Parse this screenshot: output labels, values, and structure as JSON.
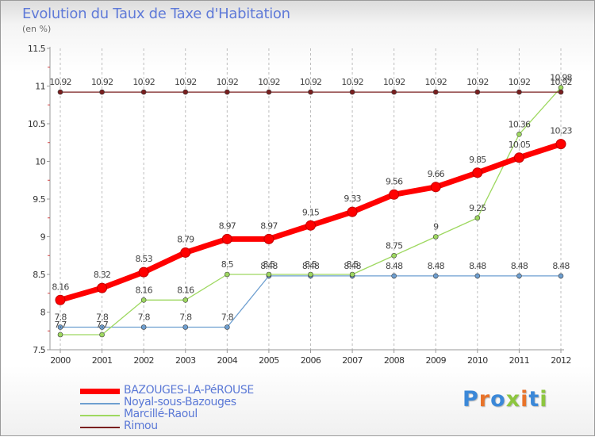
{
  "title": "Evolution du Taux de Taxe d'Habitation",
  "subtitle": "(en %)",
  "logo": {
    "text": "Proxiti",
    "letter_colors": [
      "#3b88d8",
      "#e8732a",
      "#3b88d8",
      "#8dc63f",
      "#e8732a",
      "#3b88d8",
      "#8dc63f"
    ]
  },
  "chart_data": {
    "type": "line",
    "title": "Evolution du Taux de Taxe d'Habitation",
    "subtitle": "(en %)",
    "xlabel": "",
    "ylabel": "",
    "x": [
      "2000",
      "2001",
      "2002",
      "2003",
      "2004",
      "2005",
      "2006",
      "2007",
      "2008",
      "2009",
      "2010",
      "2011",
      "2012"
    ],
    "ylim": [
      7.5,
      11.5
    ],
    "yticks": [
      "7.5",
      "8",
      "8.5",
      "9",
      "9.5",
      "10",
      "10.5",
      "11",
      "11.5"
    ],
    "grid": "vertical-dashed",
    "legend_position": "bottom-left",
    "series": [
      {
        "name": "BAZOUGES-LA-PéROUSE",
        "color": "#ff0000",
        "width": 7,
        "values": [
          8.16,
          8.32,
          8.53,
          8.79,
          8.97,
          8.97,
          9.15,
          9.33,
          9.56,
          9.66,
          9.85,
          10.05,
          10.23
        ],
        "labels": [
          "8.16",
          "8.32",
          "8.53",
          "8.79",
          "8.97",
          "8.97",
          "9.15",
          "9.33",
          "9.56",
          "9.66",
          "9.85",
          "10.05",
          "10.23"
        ]
      },
      {
        "name": "Noyal-sous-Bazouges",
        "color": "#6e9fd0",
        "width": 1.3,
        "values": [
          7.8,
          7.8,
          7.8,
          7.8,
          7.8,
          8.48,
          8.48,
          8.48,
          8.48,
          8.48,
          8.48,
          8.48,
          8.48
        ],
        "labels": [
          "7.8",
          "7.8",
          "7.8",
          "7.8",
          "7.8",
          "8.48",
          "8.48",
          "8.48",
          "8.48",
          "8.48",
          "8.48",
          "8.48",
          "8.48"
        ]
      },
      {
        "name": "Marcillé-Raoul",
        "color": "#9ed860",
        "width": 1.3,
        "values": [
          7.7,
          7.7,
          8.16,
          8.16,
          8.5,
          8.5,
          8.5,
          8.5,
          8.75,
          9,
          9.25,
          10.36,
          10.98
        ],
        "labels": [
          "7.7",
          "7.7",
          "8.16",
          "8.16",
          "8.5",
          "8.5",
          "8.5",
          "8.5",
          "8.75",
          "9",
          "9.25",
          "10.36",
          "10.98"
        ]
      },
      {
        "name": "Rimou",
        "color": "#7a1f1f",
        "width": 1.3,
        "values": [
          10.92,
          10.92,
          10.92,
          10.92,
          10.92,
          10.92,
          10.92,
          10.92,
          10.92,
          10.92,
          10.92,
          10.92,
          10.92
        ],
        "labels": [
          "10.92",
          "10.92",
          "10.92",
          "10.92",
          "10.92",
          "10.92",
          "10.92",
          "10.92",
          "10.92",
          "10.92",
          "10.92",
          "10.92",
          "10.92"
        ]
      }
    ]
  }
}
